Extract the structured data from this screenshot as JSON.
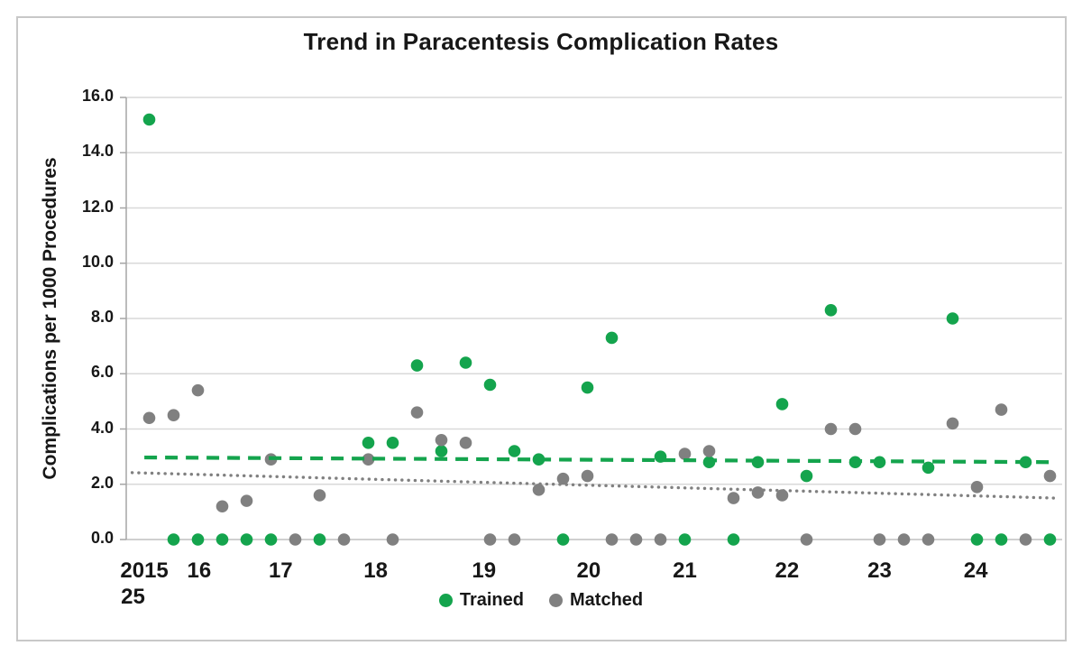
{
  "title": "Trend in Paracentesis Complication Rates",
  "y_axis": {
    "label": "Complications per 1000 Procedures",
    "tick_labels": [
      "16.0",
      "14.0",
      "12.0",
      "10.0",
      "8.0",
      "6.0",
      "4.0",
      "2.0",
      "0.0"
    ],
    "min": 0,
    "max": 16,
    "step": 2
  },
  "x_axis": {
    "ticks": [
      {
        "label": "2015",
        "label_line2": "25",
        "t": -0.2
      },
      {
        "label": "16",
        "t": 2.05
      },
      {
        "label": "17",
        "t": 5.4
      },
      {
        "label": "18",
        "t": 9.3
      },
      {
        "label": "19",
        "t": 13.75
      },
      {
        "label": "20",
        "t": 18.05
      },
      {
        "label": "21",
        "t": 22.0
      },
      {
        "label": "22",
        "t": 26.2
      },
      {
        "label": "23",
        "t": 30.0
      },
      {
        "label": "24",
        "t": 33.95
      }
    ]
  },
  "legend": {
    "items": [
      {
        "label": "Trained",
        "color": "#14A44D"
      },
      {
        "label": "Matched",
        "color": "#808080"
      }
    ]
  },
  "colors": {
    "trained": "#14A44D",
    "matched": "#808080",
    "gridline": "#D9D9D9",
    "axis": "#A6A6A6",
    "zero_axis": "#BFBFBF",
    "border": "#C8C8C8",
    "text": "#171717"
  },
  "chart_data": {
    "type": "scatter",
    "title": "Trend in Paracentesis Complication Rates",
    "ylabel": "Complications per 1000 Procedures",
    "xlabel": "",
    "ylim": [
      0,
      16
    ],
    "grid": "horizontal",
    "legend_position": "bottom-center",
    "x_note": "t = quarterly period index 0-37; year tick positions given in x_axis.ticks",
    "series": [
      {
        "name": "Trained",
        "color": "#14A44D",
        "marker": "circle",
        "points": [
          [
            0,
            15.2
          ],
          [
            1,
            0
          ],
          [
            2,
            0
          ],
          [
            3,
            0
          ],
          [
            4,
            0
          ],
          [
            5,
            0
          ],
          [
            7,
            0
          ],
          [
            9,
            3.5
          ],
          [
            10,
            3.5
          ],
          [
            11,
            6.3
          ],
          [
            12,
            3.2
          ],
          [
            13,
            6.4
          ],
          [
            14,
            5.6
          ],
          [
            15,
            3.2
          ],
          [
            16,
            2.9
          ],
          [
            17,
            0
          ],
          [
            18,
            5.5
          ],
          [
            19,
            7.3
          ],
          [
            21,
            3.0
          ],
          [
            22,
            0
          ],
          [
            23,
            2.8
          ],
          [
            24,
            0
          ],
          [
            25,
            2.8
          ],
          [
            26,
            4.9
          ],
          [
            27,
            2.3
          ],
          [
            28,
            8.3
          ],
          [
            29,
            2.8
          ],
          [
            30,
            2.8
          ],
          [
            32,
            2.6
          ],
          [
            33,
            8.0
          ],
          [
            34,
            0
          ],
          [
            35,
            0
          ],
          [
            36,
            2.8
          ],
          [
            37,
            0
          ]
        ]
      },
      {
        "name": "Matched",
        "color": "#808080",
        "marker": "circle",
        "points": [
          [
            0,
            4.4
          ],
          [
            1,
            4.5
          ],
          [
            2,
            5.4
          ],
          [
            3,
            1.2
          ],
          [
            4,
            1.4
          ],
          [
            5,
            2.9
          ],
          [
            6,
            0
          ],
          [
            7,
            1.6
          ],
          [
            8,
            0
          ],
          [
            9,
            2.9
          ],
          [
            10,
            0
          ],
          [
            11,
            4.6
          ],
          [
            12,
            3.6
          ],
          [
            13,
            3.5
          ],
          [
            14,
            0
          ],
          [
            15,
            0
          ],
          [
            16,
            1.8
          ],
          [
            17,
            2.2
          ],
          [
            18,
            2.3
          ],
          [
            19,
            0
          ],
          [
            20,
            0
          ],
          [
            21,
            0
          ],
          [
            22,
            3.1
          ],
          [
            23,
            3.2
          ],
          [
            24,
            1.5
          ],
          [
            25,
            1.7
          ],
          [
            26,
            1.6
          ],
          [
            27,
            0
          ],
          [
            28,
            4.0
          ],
          [
            29,
            4.0
          ],
          [
            30,
            0
          ],
          [
            31,
            0
          ],
          [
            32,
            0
          ],
          [
            33,
            4.2
          ],
          [
            34,
            1.9
          ],
          [
            35,
            4.7
          ],
          [
            36,
            0
          ],
          [
            37,
            2.3
          ]
        ]
      }
    ],
    "trendlines": [
      {
        "name": "Trained trend",
        "style": "dashed",
        "color": "#14A44D",
        "from": [
          -0.2,
          2.97
        ],
        "to": [
          37.2,
          2.8
        ]
      },
      {
        "name": "Matched trend",
        "style": "dotted",
        "color": "#808080",
        "from": [
          -0.7,
          2.42
        ],
        "to": [
          37.2,
          1.5
        ]
      }
    ]
  }
}
